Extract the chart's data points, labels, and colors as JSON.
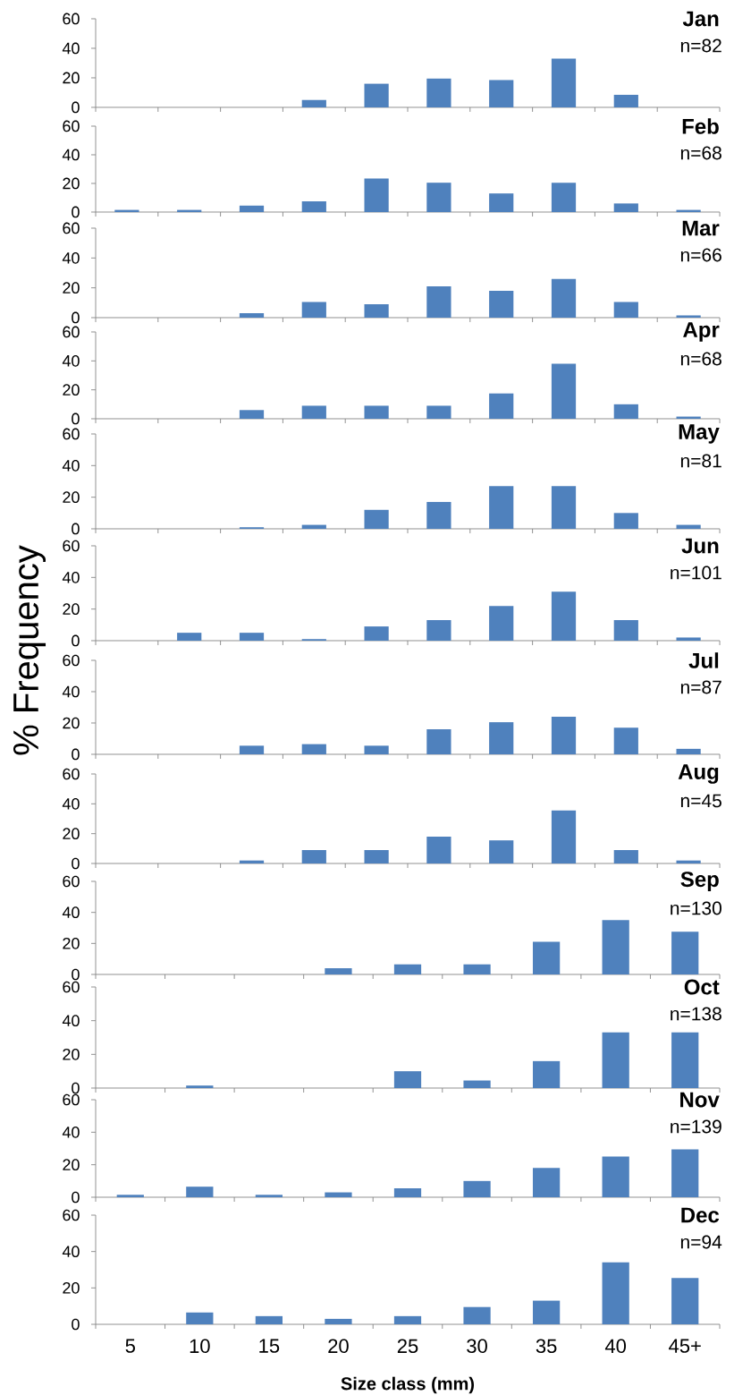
{
  "chart_data": [
    {
      "type": "bar",
      "title": "Jan",
      "subtitle": "n=82",
      "categories": [
        null,
        null,
        null,
        null,
        null,
        null,
        null,
        null,
        null,
        null
      ],
      "values": [
        0,
        0,
        0,
        5,
        16,
        19.5,
        18.5,
        33,
        8.5,
        0
      ],
      "color": "#4f81bd",
      "ylim": [
        0,
        60
      ],
      "yticks": [
        0,
        20,
        40,
        60
      ]
    },
    {
      "type": "bar",
      "title": "Feb",
      "subtitle": "n=68",
      "categories": [
        null,
        null,
        null,
        null,
        null,
        null,
        null,
        null,
        null,
        null
      ],
      "values": [
        1.5,
        1.5,
        4.5,
        7.5,
        23.5,
        20.5,
        13,
        20.5,
        6,
        1.5
      ],
      "color": "#4f81bd",
      "ylim": [
        0,
        60
      ],
      "yticks": [
        0,
        20,
        40,
        60
      ]
    },
    {
      "type": "bar",
      "title": "Mar",
      "subtitle": "n=66",
      "categories": [
        null,
        null,
        null,
        null,
        null,
        null,
        null,
        null,
        null,
        null
      ],
      "values": [
        0,
        0,
        3,
        10.5,
        9,
        21,
        18,
        26,
        10.5,
        1.5
      ],
      "color": "#4f81bd",
      "ylim": [
        0,
        60
      ],
      "yticks": [
        0,
        20,
        40,
        60
      ]
    },
    {
      "type": "bar",
      "title": "Apr",
      "subtitle": "n=68",
      "categories": [
        null,
        null,
        null,
        null,
        null,
        null,
        null,
        null,
        null,
        null
      ],
      "values": [
        0,
        0,
        6,
        9,
        9,
        9,
        17.5,
        38,
        10,
        1.5
      ],
      "color": "#4f81bd",
      "ylim": [
        0,
        60
      ],
      "yticks": [
        0,
        20,
        40,
        60
      ]
    },
    {
      "type": "bar",
      "title": "May",
      "subtitle": "n=81",
      "categories": [
        null,
        null,
        null,
        null,
        null,
        null,
        null,
        null,
        null,
        null
      ],
      "values": [
        0,
        0,
        1,
        2.5,
        12,
        17,
        27,
        27,
        10,
        2.5
      ],
      "color": "#4f81bd",
      "ylim": [
        0,
        60
      ],
      "yticks": [
        0,
        20,
        40,
        60
      ]
    },
    {
      "type": "bar",
      "title": "Jun",
      "subtitle": "n=101",
      "ylabel": "% Frequency",
      "categories": [
        null,
        null,
        null,
        null,
        null,
        null,
        null,
        null,
        null,
        null
      ],
      "values": [
        0,
        5,
        5,
        1,
        9,
        13,
        22,
        31,
        13,
        2
      ],
      "color": "#4f81bd",
      "ylim": [
        0,
        60
      ],
      "yticks": [
        0,
        20,
        40,
        60
      ]
    },
    {
      "type": "bar",
      "title": "Jul",
      "subtitle": "n=87",
      "categories": [
        null,
        null,
        null,
        null,
        null,
        null,
        null,
        null,
        null,
        null
      ],
      "values": [
        0,
        0,
        5.5,
        6.5,
        5.5,
        16,
        20.5,
        24,
        17,
        3.5
      ],
      "color": "#4f81bd",
      "ylim": [
        0,
        60
      ],
      "yticks": [
        0,
        20,
        40,
        60
      ]
    },
    {
      "type": "bar",
      "title": "Aug",
      "subtitle": "n=45",
      "categories": [
        null,
        null,
        null,
        null,
        null,
        null,
        null,
        null,
        null,
        null
      ],
      "values": [
        0,
        0,
        2,
        9,
        9,
        18,
        15.5,
        35.5,
        9,
        2
      ],
      "color": "#4f81bd",
      "ylim": [
        0,
        60
      ],
      "yticks": [
        0,
        20,
        40,
        60
      ]
    },
    {
      "type": "bar",
      "title": "Sep",
      "subtitle": "n=130",
      "categories": [
        null,
        null,
        null,
        null,
        null,
        null,
        null,
        null,
        null
      ],
      "values": [
        0,
        0,
        0,
        4,
        6.5,
        6.5,
        21,
        35,
        27.5
      ],
      "color": "#4f81bd",
      "ylim": [
        0,
        60
      ],
      "yticks": [
        0,
        20,
        40,
        60
      ]
    },
    {
      "type": "bar",
      "title": "Oct",
      "subtitle": "n=138",
      "categories": [
        null,
        null,
        null,
        null,
        null,
        null,
        null,
        null,
        null
      ],
      "values": [
        0,
        1.5,
        0,
        0,
        10,
        4.5,
        16,
        33,
        33
      ],
      "color": "#4f81bd",
      "ylim": [
        0,
        60
      ],
      "yticks": [
        0,
        20,
        40,
        60
      ]
    },
    {
      "type": "bar",
      "title": "Nov",
      "subtitle": "n=139",
      "categories": [
        null,
        null,
        null,
        null,
        null,
        null,
        null,
        null,
        null
      ],
      "values": [
        1.5,
        6.5,
        1.5,
        3,
        5.5,
        10,
        18,
        25,
        29.5
      ],
      "color": "#4f81bd",
      "ylim": [
        0,
        60
      ],
      "yticks": [
        0,
        20,
        40,
        60
      ]
    },
    {
      "type": "bar",
      "title": "Dec",
      "subtitle": "n=94",
      "xlabel": "Size class (mm)",
      "categories": [
        "5",
        "10",
        "15",
        "20",
        "25",
        "30",
        "35",
        "40",
        "45+"
      ],
      "values": [
        0,
        6.5,
        4.5,
        3,
        4.5,
        9.5,
        13,
        34,
        25.5
      ],
      "color": "#4f81bd",
      "ylim": [
        0,
        60
      ],
      "yticks": [
        0,
        20,
        40,
        60
      ]
    }
  ]
}
